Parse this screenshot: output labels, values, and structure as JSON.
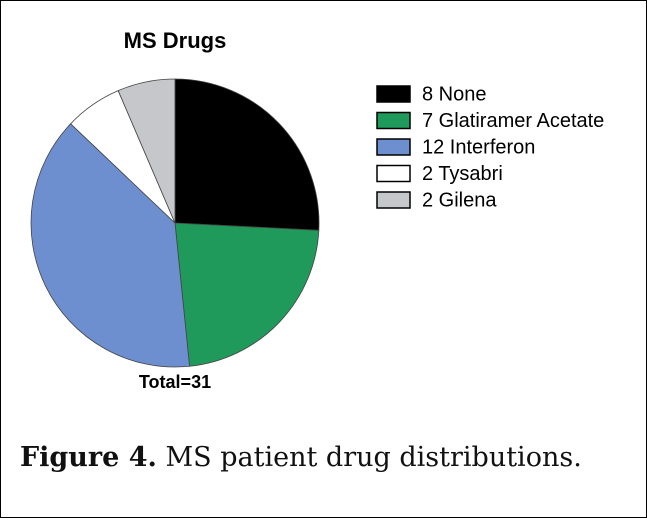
{
  "chart_data": {
    "type": "pie",
    "title": "MS Drugs",
    "categories": [
      "8 None",
      "7 Glatiramer Acetate",
      "12 Interferon",
      "2 Tysabri",
      "2 Gilena"
    ],
    "values": [
      8,
      7,
      12,
      2,
      2
    ],
    "colors": [
      "#000000",
      "#1f9a5b",
      "#6e8fcf",
      "#ffffff",
      "#c5c7ca"
    ],
    "annotation": "Total=31"
  },
  "caption": {
    "label": "Figure 4.",
    "text": "MS patient drug distributions."
  }
}
